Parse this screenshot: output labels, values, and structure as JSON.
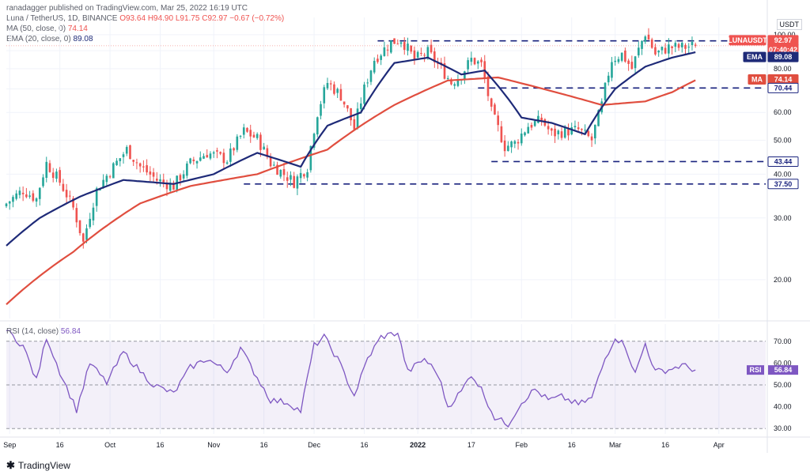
{
  "header": {
    "line1": "ranadagger published on TradingView.com, Mar 25, 2022 16:19 UTC",
    "line2_name": "Luna / TetherUS, 1D, BINANCE",
    "line2_o": "O93.64",
    "line2_h": "H94.90",
    "line2_l": "L91.75",
    "line2_c": "C92.97",
    "line2_chg": "−0.67 (−0.72%)",
    "ma_label": "MA (50, close, 0)",
    "ma_value": "74.14",
    "ema_label": "EMA (20, close, 0)",
    "ema_value": "89.08"
  },
  "currency": "USDT",
  "price_axis": {
    "ticks": [
      "100.00",
      "90.00",
      "80.00",
      "70.00",
      "60.00",
      "50.00",
      "40.00",
      "30.00",
      "20.00"
    ],
    "tags": [
      {
        "text": "96.00",
        "style": "level"
      },
      {
        "text": "LUNAUSDT",
        "style": "symbol"
      },
      {
        "text": "92.97",
        "style": "price"
      },
      {
        "text": "07:40:42",
        "style": "price"
      },
      {
        "text": "EMA",
        "style": "ema_name"
      },
      {
        "text": "89.08",
        "style": "ema"
      },
      {
        "text": "MA",
        "style": "ma_name"
      },
      {
        "text": "74.14",
        "style": "ma"
      },
      {
        "text": "70.44",
        "style": "level"
      },
      {
        "text": "43.44",
        "style": "level"
      },
      {
        "text": "37.50",
        "style": "level"
      }
    ]
  },
  "rsi": {
    "label": "RSI (14, close)",
    "value": "56.84",
    "tag_name": "RSI",
    "ticks": [
      "70.00",
      "60.00",
      "50.00",
      "40.00",
      "30.00"
    ]
  },
  "time_axis": [
    "Sep",
    "16",
    "Oct",
    "16",
    "Nov",
    "16",
    "Dec",
    "16",
    "2022",
    "17",
    "Feb",
    "16",
    "Mar",
    "16",
    "Apr"
  ],
  "branding": "TradingView",
  "colors": {
    "up": "#26a69a",
    "down": "#ef5350",
    "ema": "#1e2a78",
    "ma": "#e04e3f",
    "rsi": "#7e57c2",
    "level": "#1a237e"
  },
  "chart_data": {
    "type": "candlestick",
    "title": "Luna / TetherUS, 1D, BINANCE",
    "y_scale": "log",
    "ylim": [
      15.5,
      112
    ],
    "x_range": [
      "2021-08-31",
      "2022-04-15"
    ],
    "levels": [
      96.0,
      70.44,
      43.44,
      37.5
    ],
    "ohlc_last": {
      "open": 93.64,
      "high": 94.9,
      "low": 91.75,
      "close": 92.97
    },
    "close_anchors": [
      [
        "2021-08-31",
        33.0
      ],
      [
        "2021-09-05",
        36.0
      ],
      [
        "2021-09-09",
        34.0
      ],
      [
        "2021-09-12",
        43.0
      ],
      [
        "2021-09-16",
        38.0
      ],
      [
        "2021-09-20",
        32.0
      ],
      [
        "2021-09-23",
        25.5
      ],
      [
        "2021-09-27",
        36.0
      ],
      [
        "2021-10-02",
        42.0
      ],
      [
        "2021-10-06",
        47.0
      ],
      [
        "2021-10-10",
        42.0
      ],
      [
        "2021-10-15",
        38.5
      ],
      [
        "2021-10-20",
        37.0
      ],
      [
        "2021-10-25",
        43.0
      ],
      [
        "2021-10-30",
        46.0
      ],
      [
        "2021-11-05",
        44.0
      ],
      [
        "2021-11-10",
        53.0
      ],
      [
        "2021-11-14",
        50.5
      ],
      [
        "2021-11-18",
        43.0
      ],
      [
        "2021-11-22",
        40.0
      ],
      [
        "2021-11-25",
        38.0
      ],
      [
        "2021-11-29",
        42.0
      ],
      [
        "2021-12-02",
        60.0
      ],
      [
        "2021-12-05",
        73.0
      ],
      [
        "2021-12-09",
        67.0
      ],
      [
        "2021-12-13",
        54.0
      ],
      [
        "2021-12-16",
        70.0
      ],
      [
        "2021-12-19",
        85.0
      ],
      [
        "2021-12-24",
        95.0
      ],
      [
        "2021-12-27",
        97.0
      ],
      [
        "2021-12-31",
        85.0
      ],
      [
        "2022-01-04",
        89.0
      ],
      [
        "2022-01-08",
        80.0
      ],
      [
        "2022-01-11",
        73.0
      ],
      [
        "2022-01-14",
        77.0
      ],
      [
        "2022-01-17",
        85.0
      ],
      [
        "2022-01-20",
        82.0
      ],
      [
        "2022-01-23",
        60.0
      ],
      [
        "2022-01-27",
        48.0
      ],
      [
        "2022-01-30",
        49.0
      ],
      [
        "2022-02-03",
        55.0
      ],
      [
        "2022-02-07",
        57.0
      ],
      [
        "2022-02-10",
        52.0
      ],
      [
        "2022-02-14",
        53.0
      ],
      [
        "2022-02-18",
        53.5
      ],
      [
        "2022-02-22",
        50.0
      ],
      [
        "2022-02-25",
        63.0
      ],
      [
        "2022-02-28",
        85.0
      ],
      [
        "2022-03-03",
        88.0
      ],
      [
        "2022-03-06",
        80.0
      ],
      [
        "2022-03-10",
        101.0
      ],
      [
        "2022-03-13",
        88.0
      ],
      [
        "2022-03-17",
        92.0
      ],
      [
        "2022-03-21",
        92.0
      ],
      [
        "2022-03-25",
        92.97
      ]
    ],
    "ema20_anchors": [
      [
        "2021-08-31",
        25.0
      ],
      [
        "2021-09-10",
        30.0
      ],
      [
        "2021-09-22",
        34.5
      ],
      [
        "2021-10-05",
        38.5
      ],
      [
        "2021-10-20",
        37.5
      ],
      [
        "2021-11-01",
        40.0
      ],
      [
        "2021-11-14",
        46.0
      ],
      [
        "2021-11-27",
        42.0
      ],
      [
        "2021-12-05",
        55.0
      ],
      [
        "2021-12-15",
        60.0
      ],
      [
        "2021-12-25",
        83.0
      ],
      [
        "2022-01-04",
        86.0
      ],
      [
        "2022-01-14",
        77.0
      ],
      [
        "2022-01-21",
        79.0
      ],
      [
        "2022-02-01",
        58.0
      ],
      [
        "2022-02-10",
        56.0
      ],
      [
        "2022-02-20",
        52.0
      ],
      [
        "2022-03-01",
        70.0
      ],
      [
        "2022-03-10",
        81.0
      ],
      [
        "2022-03-18",
        86.0
      ],
      [
        "2022-03-25",
        89.08
      ]
    ],
    "ma50_anchors": [
      [
        "2021-08-31",
        17.0
      ],
      [
        "2021-09-20",
        24.0
      ],
      [
        "2021-10-10",
        33.0
      ],
      [
        "2021-10-25",
        37.0
      ],
      [
        "2021-11-14",
        40.0
      ],
      [
        "2021-12-05",
        47.0
      ],
      [
        "2021-12-25",
        63.0
      ],
      [
        "2022-01-10",
        74.0
      ],
      [
        "2022-01-25",
        75.5
      ],
      [
        "2022-02-10",
        69.0
      ],
      [
        "2022-02-25",
        63.0
      ],
      [
        "2022-03-10",
        64.5
      ],
      [
        "2022-03-18",
        68.5
      ],
      [
        "2022-03-25",
        74.14
      ]
    ],
    "rsi_anchors": [
      [
        "2021-08-31",
        75.0
      ],
      [
        "2021-09-05",
        68.0
      ],
      [
        "2021-09-09",
        52.0
      ],
      [
        "2021-09-12",
        72.0
      ],
      [
        "2021-09-16",
        56.0
      ],
      [
        "2021-09-21",
        38.5
      ],
      [
        "2021-09-25",
        60.0
      ],
      [
        "2021-09-30",
        51.0
      ],
      [
        "2021-10-05",
        65.0
      ],
      [
        "2021-10-09",
        58.0
      ],
      [
        "2021-10-14",
        50.0
      ],
      [
        "2021-10-20",
        46.0
      ],
      [
        "2021-10-25",
        58.0
      ],
      [
        "2021-10-30",
        62.0
      ],
      [
        "2021-11-05",
        56.0
      ],
      [
        "2021-11-09",
        67.0
      ],
      [
        "2021-11-13",
        56.0
      ],
      [
        "2021-11-18",
        43.0
      ],
      [
        "2021-11-23",
        42.0
      ],
      [
        "2021-11-27",
        38.0
      ],
      [
        "2021-12-01",
        68.0
      ],
      [
        "2021-12-04",
        72.0
      ],
      [
        "2021-12-08",
        62.0
      ],
      [
        "2021-12-13",
        45.0
      ],
      [
        "2021-12-17",
        62.0
      ],
      [
        "2021-12-21",
        72.0
      ],
      [
        "2021-12-26",
        74.0
      ],
      [
        "2021-12-29",
        56.0
      ],
      [
        "2022-01-03",
        62.0
      ],
      [
        "2022-01-07",
        55.0
      ],
      [
        "2022-01-10",
        40.0
      ],
      [
        "2022-01-14",
        47.0
      ],
      [
        "2022-01-17",
        55.0
      ],
      [
        "2022-01-20",
        48.0
      ],
      [
        "2022-01-24",
        35.0
      ],
      [
        "2022-01-28",
        32.0
      ],
      [
        "2022-02-01",
        42.0
      ],
      [
        "2022-02-05",
        48.0
      ],
      [
        "2022-02-09",
        43.0
      ],
      [
        "2022-02-13",
        44.5
      ],
      [
        "2022-02-18",
        41.0
      ],
      [
        "2022-02-22",
        44.0
      ],
      [
        "2022-02-26",
        62.0
      ],
      [
        "2022-03-01",
        72.0
      ],
      [
        "2022-03-04",
        68.0
      ],
      [
        "2022-03-07",
        55.0
      ],
      [
        "2022-03-10",
        69.0
      ],
      [
        "2022-03-13",
        56.0
      ],
      [
        "2022-03-17",
        57.0
      ],
      [
        "2022-03-21",
        59.0
      ],
      [
        "2022-03-25",
        56.84
      ]
    ]
  }
}
